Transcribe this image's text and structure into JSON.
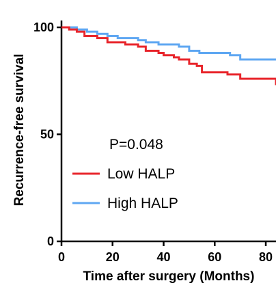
{
  "chart_data": {
    "type": "line",
    "step": true,
    "xlabel": "Time after surgery (Months)",
    "ylabel": "Recurrence-free survival",
    "xlim": [
      0,
      84
    ],
    "ylim": [
      0,
      100
    ],
    "xticks": [
      "0",
      "20",
      "40",
      "60",
      "80"
    ],
    "yticks": [
      "0",
      "50",
      "100"
    ],
    "annotation": "P=0.048",
    "legend_position": "center-left",
    "series": [
      {
        "name": "Low HALP",
        "color": "#e8262c",
        "x": [
          0,
          3,
          6,
          9,
          14,
          18,
          22,
          25,
          30,
          33,
          36,
          38,
          40,
          42,
          44,
          46,
          50,
          53,
          55,
          60,
          65,
          70,
          75,
          78,
          84
        ],
        "y": [
          100,
          99,
          98,
          96,
          95,
          93,
          93,
          92,
          91,
          89,
          89,
          88,
          87,
          87,
          86,
          85,
          83,
          82,
          79,
          79,
          78,
          76,
          76,
          76,
          73
        ]
      },
      {
        "name": "High HALP",
        "color": "#5fa7f2",
        "x": [
          0,
          6,
          10,
          14,
          18,
          22,
          27,
          30,
          33,
          38,
          42,
          46,
          50,
          54,
          58,
          62,
          66,
          70,
          74,
          84
        ],
        "y": [
          100,
          99,
          98,
          97,
          96,
          95,
          95,
          94,
          93,
          92,
          92,
          91,
          89,
          88,
          88,
          88,
          87,
          85,
          85,
          85
        ]
      }
    ]
  }
}
